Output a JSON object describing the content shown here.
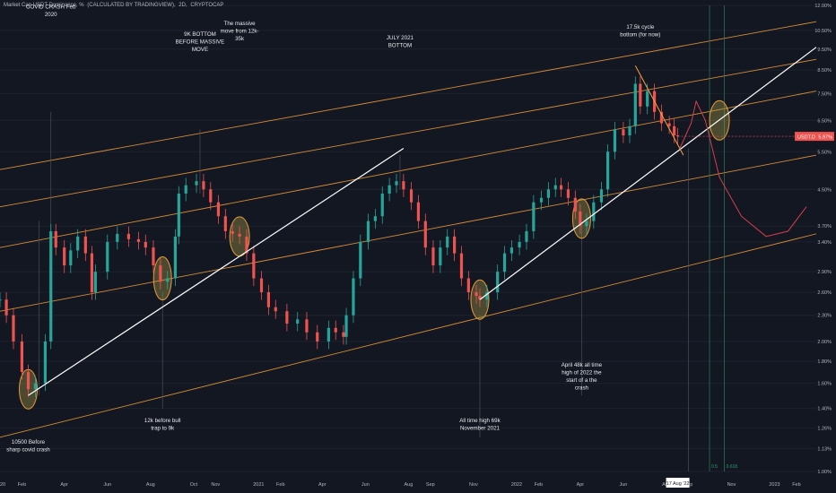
{
  "header": {
    "symbol": "Market Cap USDT Dominance, %",
    "calc": "(CALCULATED BY TRADINGVIEW),",
    "interval": "2D,",
    "source": "CRYPTOCAP"
  },
  "price_label": "USDT.D",
  "price_value": "5.97%",
  "cursor_date": "17 Aug '22",
  "fib_labels": [
    "0.5",
    "0.618"
  ],
  "colors": {
    "background": "#131722",
    "up": "#26a69a",
    "down": "#ef5350",
    "channel": "#f7a13a",
    "trend": "#ffffff",
    "highlight_fill": "#b5a84a",
    "projection": "#d93f4c"
  },
  "chart_data": {
    "type": "candlestick",
    "y_scale": "log",
    "ylim": [
      1.0,
      12.0
    ],
    "y_ticks": [
      "12.00%",
      "10.50%",
      "9.50%",
      "8.50%",
      "7.50%",
      "6.50%",
      "5.50%",
      "4.50%",
      "3.70%",
      "3.40%",
      "2.90%",
      "2.60%",
      "2.30%",
      "2.00%",
      "1.80%",
      "1.60%",
      "1.40%",
      "1.26%",
      "1.13%",
      "1.00%"
    ],
    "x_ticks": [
      "2020",
      "Feb",
      "Apr",
      "Jun",
      "Aug",
      "Oct",
      "Nov",
      "2021",
      "Feb",
      "Apr",
      "Jun",
      "Aug",
      "Sep",
      "Nov",
      "2022",
      "Feb",
      "Apr",
      "Jun",
      "Aug",
      "Sep",
      "Nov",
      "2023",
      "Feb"
    ],
    "x_start": "2020-01-01",
    "x_end": "2023-03-01",
    "annotations": [
      {
        "text": "COVID CRASH Feb 2020"
      },
      {
        "text": "9K BOTTOM BEFORE MASSIVE MOVE"
      },
      {
        "text": "The massive move from 12k-35k"
      },
      {
        "text": "JULY 2021 BOTTOM"
      },
      {
        "text": "17.5k cycle bottom (for now)"
      },
      {
        "text": "10500 Before sharp covid crash"
      },
      {
        "text": "12k before bull trap to 9k"
      },
      {
        "text": "All time high 69k November 2021"
      },
      {
        "text": "April 48k all time high of 2022 the start of a the crash"
      }
    ],
    "series": [
      {
        "values": [
          [
            "2020-01-01",
            2.5
          ],
          [
            "2020-01-10",
            2.3
          ],
          [
            "2020-01-20",
            2.0
          ],
          [
            "2020-02-01",
            1.7
          ],
          [
            "2020-02-10",
            1.55
          ],
          [
            "2020-02-20",
            1.6
          ],
          [
            "2020-03-05",
            2.0
          ],
          [
            "2020-03-13",
            3.6
          ],
          [
            "2020-03-20",
            3.3
          ],
          [
            "2020-04-01",
            3.0
          ],
          [
            "2020-04-10",
            3.25
          ],
          [
            "2020-04-20",
            3.5
          ],
          [
            "2020-05-01",
            3.2
          ],
          [
            "2020-05-10",
            2.6
          ],
          [
            "2020-05-15",
            2.9
          ],
          [
            "2020-06-01",
            3.4
          ],
          [
            "2020-06-15",
            3.55
          ],
          [
            "2020-07-01",
            3.45
          ],
          [
            "2020-07-15",
            3.4
          ],
          [
            "2020-07-25",
            3.3
          ],
          [
            "2020-08-05",
            3.0
          ],
          [
            "2020-08-15",
            2.75
          ],
          [
            "2020-08-25",
            2.8
          ],
          [
            "2020-09-05",
            3.5
          ],
          [
            "2020-09-10",
            4.4
          ],
          [
            "2020-09-20",
            4.6
          ],
          [
            "2020-10-05",
            4.7
          ],
          [
            "2020-10-15",
            4.5
          ],
          [
            "2020-10-25",
            4.2
          ],
          [
            "2020-11-05",
            3.9
          ],
          [
            "2020-11-15",
            3.6
          ],
          [
            "2020-11-25",
            3.55
          ],
          [
            "2020-12-05",
            3.5
          ],
          [
            "2020-12-15",
            3.2
          ],
          [
            "2020-12-25",
            2.8
          ],
          [
            "2021-01-05",
            2.6
          ],
          [
            "2021-01-15",
            2.4
          ],
          [
            "2021-01-25",
            2.35
          ],
          [
            "2021-02-10",
            2.2
          ],
          [
            "2021-02-25",
            2.25
          ],
          [
            "2021-03-10",
            2.1
          ],
          [
            "2021-03-25",
            2.0
          ],
          [
            "2021-04-10",
            2.15
          ],
          [
            "2021-04-20",
            2.1
          ],
          [
            "2021-05-01",
            2.05
          ],
          [
            "2021-05-05",
            2.3
          ],
          [
            "2021-05-15",
            2.8
          ],
          [
            "2021-05-25",
            3.4
          ],
          [
            "2021-06-05",
            3.8
          ],
          [
            "2021-06-15",
            3.9
          ],
          [
            "2021-06-25",
            4.4
          ],
          [
            "2021-07-05",
            4.6
          ],
          [
            "2021-07-15",
            4.7
          ],
          [
            "2021-07-25",
            4.5
          ],
          [
            "2021-08-05",
            4.2
          ],
          [
            "2021-08-15",
            3.8
          ],
          [
            "2021-08-25",
            3.3
          ],
          [
            "2021-09-05",
            3.0
          ],
          [
            "2021-09-15",
            3.3
          ],
          [
            "2021-09-25",
            3.5
          ],
          [
            "2021-10-05",
            3.2
          ],
          [
            "2021-10-15",
            2.8
          ],
          [
            "2021-10-25",
            2.6
          ],
          [
            "2021-11-05",
            2.55
          ],
          [
            "2021-11-10",
            2.5
          ],
          [
            "2021-11-20",
            2.6
          ],
          [
            "2021-12-05",
            2.9
          ],
          [
            "2021-12-15",
            3.2
          ],
          [
            "2021-12-25",
            3.3
          ],
          [
            "2022-01-05",
            3.4
          ],
          [
            "2022-01-15",
            3.6
          ],
          [
            "2022-01-25",
            4.2
          ],
          [
            "2022-02-05",
            4.3
          ],
          [
            "2022-02-15",
            4.5
          ],
          [
            "2022-02-25",
            4.6
          ],
          [
            "2022-03-05",
            4.5
          ],
          [
            "2022-03-15",
            4.3
          ],
          [
            "2022-03-25",
            4.0
          ],
          [
            "2022-04-01",
            3.7
          ],
          [
            "2022-04-10",
            3.8
          ],
          [
            "2022-04-20",
            4.2
          ],
          [
            "2022-05-01",
            4.5
          ],
          [
            "2022-05-10",
            5.5
          ],
          [
            "2022-05-20",
            6.2
          ],
          [
            "2022-06-01",
            6.0
          ],
          [
            "2022-06-10",
            6.3
          ],
          [
            "2022-06-18",
            7.9
          ],
          [
            "2022-06-25",
            7.0
          ],
          [
            "2022-07-05",
            7.6
          ],
          [
            "2022-07-15",
            6.8
          ],
          [
            "2022-07-25",
            6.4
          ],
          [
            "2022-08-05",
            6.3
          ],
          [
            "2022-08-12",
            6.0
          ],
          [
            "2022-08-17",
            5.97
          ]
        ]
      }
    ],
    "overlays": {
      "projection": [
        [
          "2022-08-20",
          5.6
        ],
        [
          "2022-09-05",
          6.4
        ],
        [
          "2022-09-12",
          7.2
        ],
        [
          "2022-09-25",
          6.5
        ],
        [
          "2022-10-15",
          4.8
        ],
        [
          "2022-11-15",
          3.9
        ],
        [
          "2022-12-20",
          3.5
        ],
        [
          "2023-01-20",
          3.6
        ],
        [
          "2023-02-15",
          4.1
        ]
      ]
    }
  }
}
